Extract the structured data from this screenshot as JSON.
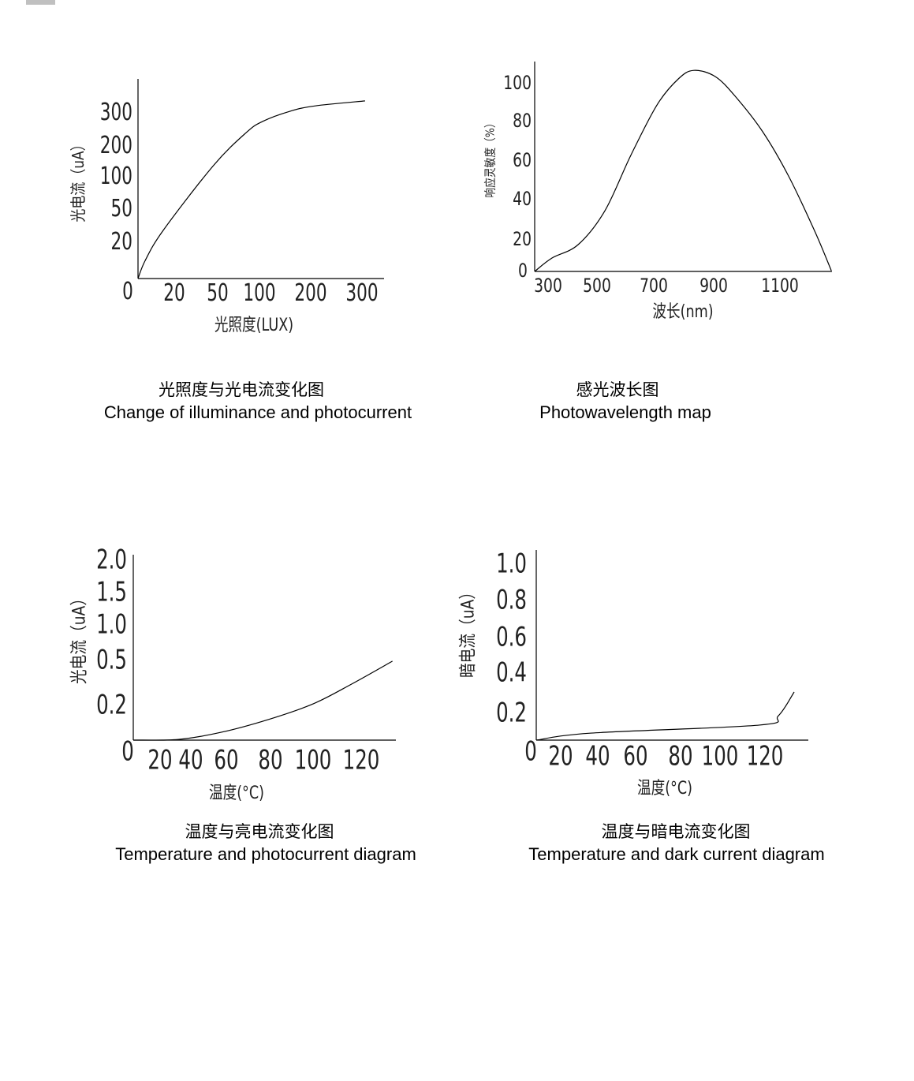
{
  "chart_data": [
    {
      "type": "line",
      "title_zh": "光照度与光电流变化图",
      "title_en": "Change of illuminance and photocurrent",
      "xlabel": "光照度(LUX)",
      "ylabel": "光电流（uA）",
      "x_ticks": [
        "20",
        "50",
        "100",
        "200",
        "300"
      ],
      "y_ticks": [
        "0",
        "20",
        "50",
        "100",
        "200",
        "300"
      ],
      "x_tick_values": [
        20,
        50,
        100,
        200,
        300
      ],
      "y_tick_values": [
        0,
        20,
        50,
        100,
        200,
        300
      ],
      "grid": false,
      "series": [
        {
          "x": [
            0,
            4,
            14,
            47,
            84,
            106,
            160,
            209,
            306
          ],
          "y": [
            0,
            10,
            31,
            136,
            240,
            274,
            305,
            321,
            336
          ]
        }
      ]
    },
    {
      "type": "line",
      "title_zh": "感光波长图",
      "title_en": "Photowavelength map",
      "xlabel": "波长(nm)",
      "ylabel": "响应灵敏度（%）",
      "x_ticks": [
        "300",
        "500",
        "700",
        "900",
        "1100"
      ],
      "y_ticks": [
        "100",
        "80",
        "60",
        "40",
        "20",
        "0"
      ],
      "x_tick_values": [
        300,
        500,
        700,
        900,
        1100
      ],
      "y_tick_values": [
        100,
        80,
        60,
        40,
        20,
        0
      ],
      "grid": false,
      "series": [
        {
          "x": [
            250,
            316,
            423,
            528,
            619,
            711,
            782,
            834,
            905,
            967,
            1048,
            1126,
            1205,
            1255
          ],
          "y": [
            0,
            8.5,
            17,
            34.5,
            62.8,
            88.8,
            102.5,
            107,
            103.7,
            92.9,
            74.8,
            52.2,
            24.3,
            0.5
          ]
        }
      ]
    },
    {
      "type": "line",
      "title_zh": "温度与亮电流变化图",
      "title_en": "Temperature and photocurrent diagram",
      "xlabel": "温度(°C)",
      "ylabel": "光电流（uA）",
      "x_ticks": [
        "20",
        "40",
        "60",
        "80",
        "100",
        "120"
      ],
      "y_ticks": [
        "2.0",
        "1.5",
        "1.0",
        "0.5",
        "0.2",
        "0"
      ],
      "x_tick_values": [
        20,
        40,
        60,
        80,
        100,
        120
      ],
      "y_tick_values": [
        2.0,
        1.5,
        1.0,
        0.5,
        0.2,
        0
      ],
      "grid": false,
      "series": [
        {
          "x": [
            0,
            32,
            57,
            79,
            100,
            116,
            133
          ],
          "y": [
            0,
            0.004,
            0.044,
            0.116,
            0.205,
            0.337,
            0.49
          ]
        }
      ]
    },
    {
      "type": "line",
      "title_zh": "温度与暗电流变化图",
      "title_en": "Temperature and dark current diagram",
      "xlabel": "温度(°C)",
      "ylabel": "暗电流（uA）",
      "x_ticks": [
        "20",
        "40",
        "60",
        "80",
        "100",
        "120"
      ],
      "y_ticks": [
        "1.0",
        "0.8",
        "0.6",
        "0.4",
        "0.2",
        "0"
      ],
      "x_tick_values": [
        20,
        40,
        60,
        80,
        100,
        120
      ],
      "y_tick_values": [
        1.0,
        0.8,
        0.6,
        0.4,
        0.2,
        0
      ],
      "grid": false,
      "series": [
        {
          "x": [
            0,
            36.6,
            117.5,
            126,
            133
          ],
          "y": [
            0,
            0.051,
            0.109,
            0.177,
            0.302
          ]
        }
      ]
    }
  ]
}
